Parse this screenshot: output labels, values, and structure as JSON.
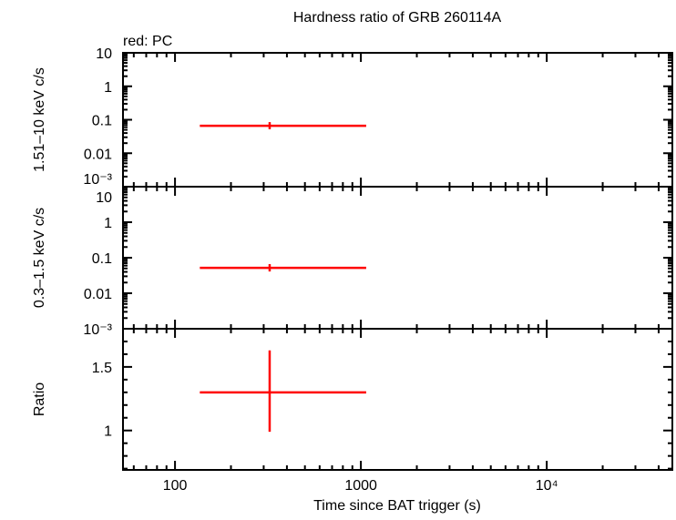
{
  "chart_data": [
    {
      "type": "scatter",
      "title": "Hardness ratio of GRB 260114A",
      "annotation": "red: PC",
      "ylabel": "1.51–10 keV c/s",
      "yscale": "log",
      "ylim": [
        0.001,
        10
      ],
      "yticks": [
        {
          "v": 10,
          "t": "10"
        },
        {
          "v": 1,
          "t": "1"
        },
        {
          "v": 0.1,
          "t": "0.1"
        },
        {
          "v": 0.01,
          "t": "0.01"
        },
        {
          "v": 0.001,
          "t": "10⁻³"
        }
      ],
      "series": [
        {
          "color": "#ff0000",
          "points": [
            {
              "x": 323,
              "xlo": 136,
              "xhi": 1068,
              "y": 0.066,
              "ylo": 0.052,
              "yhi": 0.085
            }
          ]
        }
      ]
    },
    {
      "type": "scatter",
      "ylabel": "0.3–1.5 keV c/s",
      "yscale": "log",
      "ylim": [
        0.001,
        10
      ],
      "yticks": [
        {
          "v": 10,
          "t": "10"
        },
        {
          "v": 1,
          "t": "1"
        },
        {
          "v": 0.1,
          "t": "0.1"
        },
        {
          "v": 0.01,
          "t": "0.01"
        },
        {
          "v": 0.001,
          "t": "10⁻³"
        }
      ],
      "series": [
        {
          "color": "#ff0000",
          "points": [
            {
              "x": 323,
              "xlo": 136,
              "xhi": 1068,
              "y": 0.052,
              "ylo": 0.041,
              "yhi": 0.066
            }
          ]
        }
      ]
    },
    {
      "type": "scatter",
      "ylabel": "Ratio",
      "yscale": "linear",
      "ylim": [
        0.69,
        1.8
      ],
      "yticks": [
        {
          "v": 1.5,
          "t": "1.5"
        },
        {
          "v": 1,
          "t": "1"
        }
      ],
      "xlabel": "Time since BAT trigger (s)",
      "xscale": "log",
      "xlim": [
        52.5,
        47400
      ],
      "xticks": [
        {
          "v": 100,
          "t": "100"
        },
        {
          "v": 1000,
          "t": "1000"
        },
        {
          "v": 10000,
          "t": "10⁴"
        }
      ],
      "series": [
        {
          "color": "#ff0000",
          "points": [
            {
              "x": 323,
              "xlo": 136,
              "xhi": 1068,
              "y": 1.3,
              "ylo": 0.99,
              "yhi": 1.63
            }
          ]
        }
      ]
    }
  ]
}
